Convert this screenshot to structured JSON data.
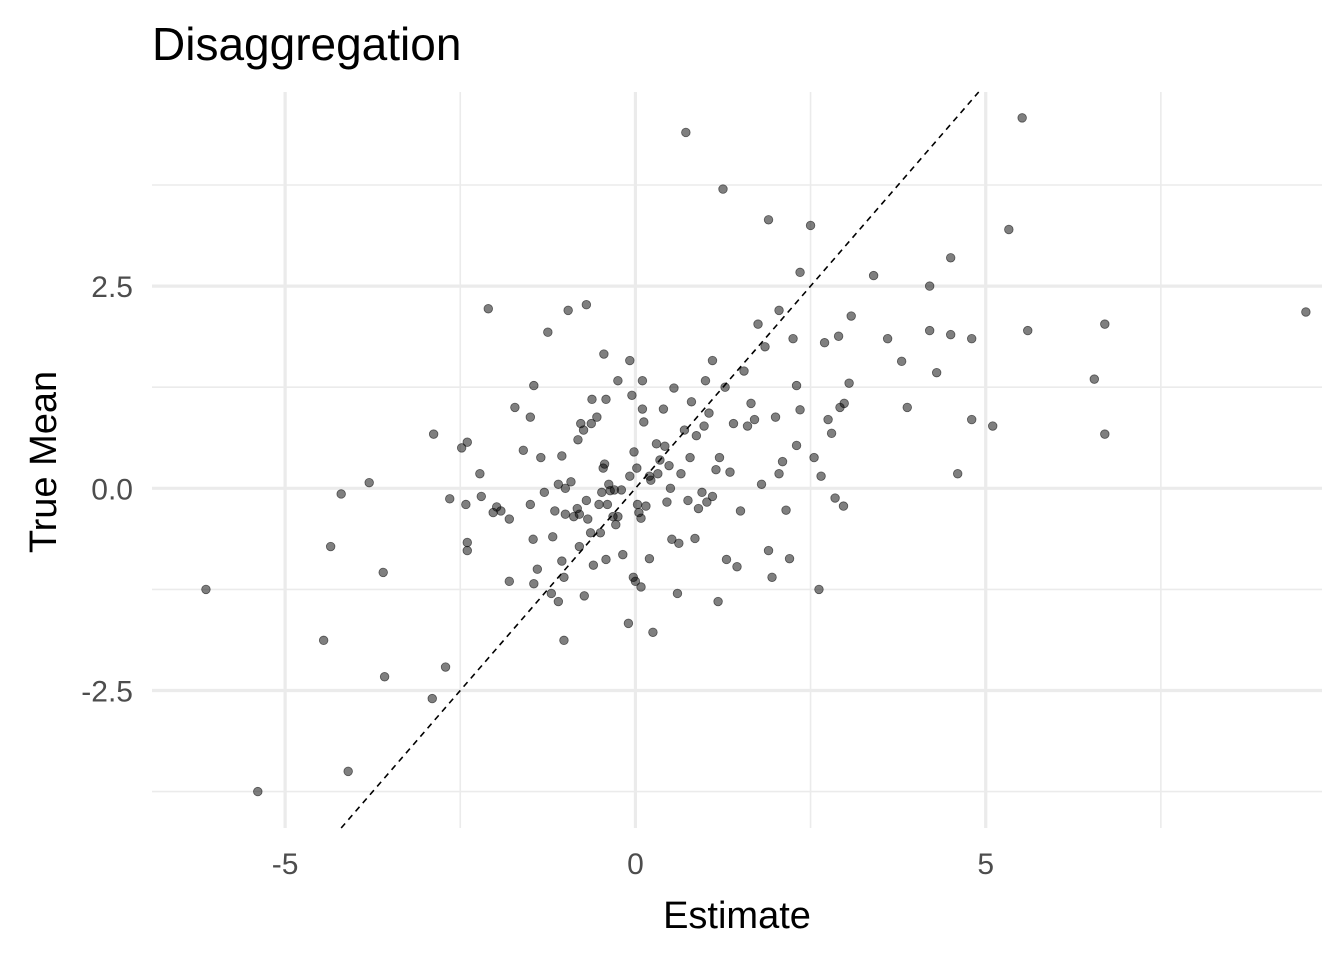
{
  "chart_data": {
    "type": "scatter",
    "title": "Disaggregation",
    "xlabel": "Estimate",
    "ylabel": "True Mean",
    "xlim": [
      -6.9,
      9.8
    ],
    "ylim": [
      -4.2,
      4.9
    ],
    "x_major_ticks": [
      -5,
      0,
      5
    ],
    "x_minor_ticks": [
      -2.5,
      2.5,
      7.5
    ],
    "y_major_ticks": [
      -2.5,
      0.0,
      2.5
    ],
    "y_minor_ticks": [
      -3.75,
      -1.25,
      1.25,
      3.75
    ],
    "x_tick_labels": [
      "-5",
      "0",
      "5"
    ],
    "y_tick_labels": [
      "-2.5",
      "0.0",
      "2.5"
    ],
    "grid": true,
    "reference_line": {
      "type": "identity",
      "style": "dashed"
    },
    "points": [
      [
        -6.13,
        -1.25
      ],
      [
        -5.39,
        -3.75
      ],
      [
        -4.45,
        -1.88
      ],
      [
        -4.35,
        -0.72
      ],
      [
        -4.2,
        -0.07
      ],
      [
        -4.1,
        -3.5
      ],
      [
        -3.6,
        -1.04
      ],
      [
        -3.58,
        -2.33
      ],
      [
        -3.8,
        0.07
      ],
      [
        -2.9,
        -2.6
      ],
      [
        -2.71,
        -2.21
      ],
      [
        -2.88,
        0.67
      ],
      [
        -2.65,
        -0.13
      ],
      [
        -2.48,
        0.5
      ],
      [
        -2.4,
        0.57
      ],
      [
        -2.42,
        -0.2
      ],
      [
        -2.4,
        -0.77
      ],
      [
        -2.4,
        -0.67
      ],
      [
        -2.2,
        -0.1
      ],
      [
        -2.22,
        0.18
      ],
      [
        -2.1,
        2.22
      ],
      [
        -2.03,
        -0.3
      ],
      [
        -1.98,
        -0.23
      ],
      [
        -1.92,
        -0.28
      ],
      [
        -1.8,
        -0.38
      ],
      [
        -1.8,
        -1.15
      ],
      [
        -1.72,
        1.0
      ],
      [
        -1.6,
        0.47
      ],
      [
        -1.5,
        -0.2
      ],
      [
        -1.5,
        0.88
      ],
      [
        -1.45,
        1.27
      ],
      [
        -1.46,
        -0.63
      ],
      [
        -1.4,
        -1.0
      ],
      [
        -1.45,
        -1.18
      ],
      [
        -1.35,
        0.38
      ],
      [
        -1.3,
        -0.05
      ],
      [
        -1.25,
        1.93
      ],
      [
        -1.2,
        -1.3
      ],
      [
        -1.18,
        -0.6
      ],
      [
        -1.15,
        -0.28
      ],
      [
        -1.1,
        -1.4
      ],
      [
        -1.1,
        0.05
      ],
      [
        -1.05,
        0.4
      ],
      [
        -1.05,
        -0.9
      ],
      [
        -1.0,
        0.0
      ],
      [
        -1.02,
        -1.88
      ],
      [
        -1.0,
        -0.32
      ],
      [
        -1.02,
        -1.1
      ],
      [
        -0.96,
        2.2
      ],
      [
        -0.92,
        0.08
      ],
      [
        -0.88,
        -0.35
      ],
      [
        -0.82,
        0.6
      ],
      [
        -0.83,
        -0.25
      ],
      [
        -0.8,
        -0.32
      ],
      [
        -0.8,
        -0.72
      ],
      [
        -0.78,
        0.8
      ],
      [
        -0.73,
        -1.33
      ],
      [
        -0.74,
        0.72
      ],
      [
        -0.7,
        2.27
      ],
      [
        -0.7,
        -0.15
      ],
      [
        -0.68,
        -0.38
      ],
      [
        -0.64,
        -0.55
      ],
      [
        -0.63,
        0.8
      ],
      [
        -0.62,
        1.1
      ],
      [
        -0.6,
        -0.95
      ],
      [
        -0.55,
        0.88
      ],
      [
        -0.52,
        -0.2
      ],
      [
        -0.5,
        -0.55
      ],
      [
        -0.48,
        -0.05
      ],
      [
        -0.46,
        0.25
      ],
      [
        -0.45,
        1.66
      ],
      [
        -0.44,
        0.3
      ],
      [
        -0.42,
        1.1
      ],
      [
        -0.42,
        -0.88
      ],
      [
        -0.4,
        -0.2
      ],
      [
        -0.38,
        0.05
      ],
      [
        -0.36,
        -0.03
      ],
      [
        -0.32,
        -0.35
      ],
      [
        -0.3,
        -0.02
      ],
      [
        -0.28,
        -0.45
      ],
      [
        -0.25,
        1.33
      ],
      [
        -0.25,
        -0.35
      ],
      [
        -0.2,
        -0.02
      ],
      [
        -0.18,
        -0.82
      ],
      [
        -0.1,
        -1.67
      ],
      [
        -0.08,
        1.58
      ],
      [
        -0.08,
        0.15
      ],
      [
        -0.05,
        1.15
      ],
      [
        -0.02,
        0.45
      ],
      [
        -0.03,
        -1.1
      ],
      [
        0.0,
        -1.15
      ],
      [
        0.02,
        0.25
      ],
      [
        0.05,
        -0.3
      ],
      [
        0.03,
        -0.2
      ],
      [
        0.08,
        -1.22
      ],
      [
        0.08,
        -0.37
      ],
      [
        0.1,
        0.98
      ],
      [
        0.12,
        0.82
      ],
      [
        0.1,
        1.33
      ],
      [
        0.15,
        -0.22
      ],
      [
        0.2,
        -0.87
      ],
      [
        0.22,
        0.1
      ],
      [
        0.2,
        0.15
      ],
      [
        0.25,
        -1.78
      ],
      [
        0.3,
        0.55
      ],
      [
        0.32,
        0.18
      ],
      [
        0.35,
        0.35
      ],
      [
        0.4,
        0.98
      ],
      [
        0.42,
        0.52
      ],
      [
        0.45,
        -0.17
      ],
      [
        0.48,
        0.28
      ],
      [
        0.5,
        0.0
      ],
      [
        0.52,
        -0.63
      ],
      [
        0.55,
        1.24
      ],
      [
        0.6,
        -1.3
      ],
      [
        0.62,
        -0.68
      ],
      [
        0.65,
        0.18
      ],
      [
        0.7,
        0.72
      ],
      [
        0.72,
        4.4
      ],
      [
        0.75,
        -0.15
      ],
      [
        0.78,
        0.38
      ],
      [
        0.8,
        1.07
      ],
      [
        0.85,
        -0.62
      ],
      [
        0.87,
        0.65
      ],
      [
        0.9,
        -0.25
      ],
      [
        0.95,
        -0.05
      ],
      [
        0.98,
        0.77
      ],
      [
        1.0,
        1.33
      ],
      [
        1.02,
        -0.17
      ],
      [
        1.05,
        0.93
      ],
      [
        1.1,
        -0.1
      ],
      [
        1.1,
        1.58
      ],
      [
        1.15,
        0.23
      ],
      [
        1.18,
        -1.4
      ],
      [
        1.2,
        0.38
      ],
      [
        1.25,
        3.7
      ],
      [
        1.28,
        1.25
      ],
      [
        1.3,
        -0.88
      ],
      [
        1.35,
        0.2
      ],
      [
        1.4,
        0.8
      ],
      [
        1.45,
        -0.97
      ],
      [
        1.5,
        -0.28
      ],
      [
        1.55,
        1.45
      ],
      [
        1.6,
        0.77
      ],
      [
        1.65,
        1.05
      ],
      [
        1.7,
        0.85
      ],
      [
        1.75,
        2.03
      ],
      [
        1.8,
        0.05
      ],
      [
        1.85,
        1.75
      ],
      [
        1.9,
        3.32
      ],
      [
        1.9,
        -0.77
      ],
      [
        1.95,
        -1.1
      ],
      [
        2.0,
        0.88
      ],
      [
        2.05,
        2.2
      ],
      [
        2.05,
        0.18
      ],
      [
        2.1,
        0.33
      ],
      [
        2.15,
        -0.27
      ],
      [
        2.2,
        -0.87
      ],
      [
        2.25,
        1.85
      ],
      [
        2.3,
        1.27
      ],
      [
        2.3,
        0.53
      ],
      [
        2.35,
        0.97
      ],
      [
        2.35,
        2.67
      ],
      [
        2.5,
        3.25
      ],
      [
        2.55,
        0.38
      ],
      [
        2.62,
        -1.25
      ],
      [
        2.65,
        0.15
      ],
      [
        2.7,
        1.8
      ],
      [
        2.75,
        0.85
      ],
      [
        2.8,
        0.68
      ],
      [
        2.85,
        -0.12
      ],
      [
        2.9,
        1.88
      ],
      [
        2.92,
        1.0
      ],
      [
        2.98,
        1.05
      ],
      [
        2.97,
        -0.22
      ],
      [
        3.05,
        1.3
      ],
      [
        3.08,
        2.13
      ],
      [
        3.4,
        2.63
      ],
      [
        3.6,
        1.85
      ],
      [
        3.8,
        1.57
      ],
      [
        3.88,
        1.0
      ],
      [
        4.2,
        2.5
      ],
      [
        4.2,
        1.95
      ],
      [
        4.3,
        1.43
      ],
      [
        4.5,
        2.85
      ],
      [
        4.5,
        1.9
      ],
      [
        4.6,
        0.18
      ],
      [
        4.8,
        1.85
      ],
      [
        4.8,
        0.85
      ],
      [
        5.1,
        0.77
      ],
      [
        5.33,
        3.2
      ],
      [
        5.52,
        4.58
      ],
      [
        5.6,
        1.95
      ],
      [
        6.55,
        1.35
      ],
      [
        6.7,
        2.03
      ],
      [
        6.7,
        0.67
      ],
      [
        9.57,
        2.18
      ]
    ]
  }
}
